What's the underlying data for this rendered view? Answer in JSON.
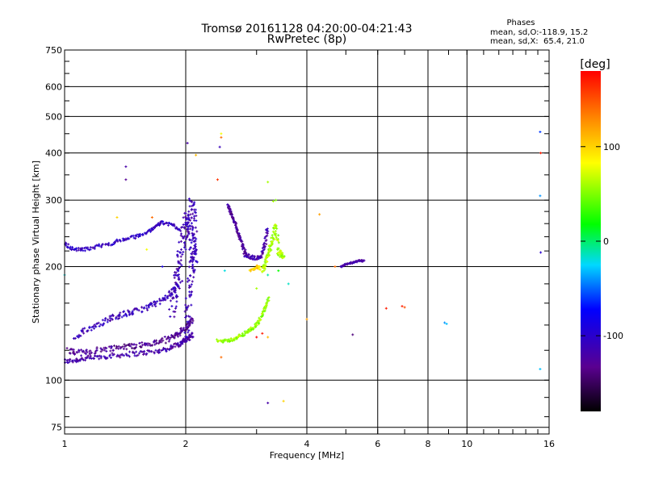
{
  "chart_data": {
    "type": "scatter",
    "title": "Tromsø 20161128 04:20:00-04:21:43",
    "subtitle": "RwPretec (8p)",
    "xlabel": "Frequency [MHz]",
    "ylabel": "Stationary phase Virtual Height [km]",
    "x_scale": "log",
    "y_scale": "log",
    "xlim": [
      1,
      16
    ],
    "ylim": [
      72,
      750
    ],
    "x_ticks": [
      1,
      2,
      4,
      6,
      8,
      10,
      16
    ],
    "y_ticks": [
      75,
      100,
      200,
      300,
      400,
      500,
      600,
      750
    ],
    "grid": true,
    "stats": {
      "heading": "Phases",
      "line1": "mean, sd,O:-118.9, 15.2",
      "line2": "mean, sd,X:  65.4, 21.0"
    },
    "colorbar": {
      "label": "[deg]",
      "range": [
        -180,
        180
      ],
      "ticks": [
        100,
        0,
        -100
      ]
    },
    "traces": [
      {
        "x": [
          1.0,
          1.06,
          1.12,
          1.2,
          1.3,
          1.42,
          1.55,
          1.68,
          1.8,
          1.9,
          1.96,
          2.0,
          2.04,
          2.08
        ],
        "y": [
          112,
          113,
          114,
          115,
          116,
          117,
          118,
          119,
          121,
          124,
          126,
          128,
          130,
          132
        ],
        "phase": -120,
        "spread": 0.03
      },
      {
        "x": [
          1.02,
          1.08,
          1.15,
          1.25,
          1.35,
          1.45,
          1.55,
          1.65,
          1.75,
          1.85,
          1.92,
          1.98,
          2.03,
          2.08
        ],
        "y": [
          120,
          118,
          119,
          121,
          122,
          123,
          124,
          125,
          127,
          130,
          133,
          136,
          140,
          145
        ],
        "phase": -130,
        "spread": 0.035
      },
      {
        "x": [
          1.06,
          1.12,
          1.2,
          1.28,
          1.35,
          1.42,
          1.5,
          1.6,
          1.7,
          1.8,
          1.88,
          1.95
        ],
        "y": [
          128,
          135,
          140,
          145,
          148,
          150,
          152,
          156,
          160,
          166,
          175,
          185
        ],
        "phase": -110,
        "spread": 0.035
      },
      {
        "x": [
          1.0,
          1.05,
          1.12,
          1.2,
          1.3,
          1.4,
          1.5,
          1.6,
          1.68,
          1.75,
          1.85,
          1.95
        ],
        "y": [
          230,
          222,
          222,
          226,
          230,
          236,
          240,
          246,
          256,
          262,
          258,
          250
        ],
        "phase": -105,
        "spread": 0.02
      },
      {
        "x": [
          1.85,
          1.88,
          1.9,
          1.92,
          1.95,
          1.98,
          2.0,
          2.02,
          2.05,
          2.08,
          2.1
        ],
        "y": [
          150,
          165,
          185,
          200,
          220,
          240,
          260,
          275,
          250,
          220,
          200
        ],
        "phase": -115,
        "spread": 0.07
      },
      {
        "x": [
          2.0,
          2.02,
          2.04,
          2.06,
          2.08,
          2.1,
          2.1,
          2.08,
          2.05
        ],
        "y": [
          130,
          150,
          170,
          190,
          210,
          230,
          250,
          280,
          300
        ],
        "phase": -110,
        "spread": 0.06
      },
      {
        "x": [
          2.55,
          2.58,
          2.62,
          2.66,
          2.7,
          2.75,
          2.8,
          2.85
        ],
        "y": [
          290,
          280,
          270,
          258,
          245,
          232,
          220,
          212
        ],
        "phase": -125,
        "spread": 0.02
      },
      {
        "x": [
          2.8,
          2.9,
          3.0,
          3.1,
          3.15,
          3.2
        ],
        "y": [
          215,
          212,
          210,
          215,
          230,
          255
        ],
        "phase": -120,
        "spread": 0.025
      },
      {
        "x": [
          2.4,
          2.5,
          2.6,
          2.7,
          2.8,
          2.9,
          3.0,
          3.08,
          3.15,
          3.22
        ],
        "y": [
          127,
          127,
          128,
          130,
          133,
          136,
          140,
          147,
          155,
          165
        ],
        "phase": 55,
        "spread": 0.02
      },
      {
        "x": [
          3.1,
          3.15,
          3.2,
          3.25,
          3.3,
          3.35,
          3.4,
          3.45,
          3.5
        ],
        "y": [
          195,
          205,
          215,
          225,
          240,
          260,
          220,
          215,
          210
        ],
        "phase": 60,
        "spread": 0.03
      },
      {
        "x": [
          2.9,
          3.0,
          3.05
        ],
        "y": [
          195,
          200,
          198
        ],
        "phase": 100,
        "spread": 0.02
      },
      {
        "x": [
          4.85,
          5.0,
          5.2,
          5.4,
          5.55
        ],
        "y": [
          200,
          203,
          205,
          207,
          207
        ],
        "phase": -120,
        "spread": 0.01
      }
    ],
    "points": [
      {
        "x": 1.42,
        "y": 368,
        "phase": -120
      },
      {
        "x": 1.42,
        "y": 340,
        "phase": -130
      },
      {
        "x": 2.02,
        "y": 425,
        "phase": -120
      },
      {
        "x": 2.12,
        "y": 395,
        "phase": 110
      },
      {
        "x": 2.45,
        "y": 450,
        "phase": 80
      },
      {
        "x": 2.45,
        "y": 440,
        "phase": 140
      },
      {
        "x": 2.43,
        "y": 415,
        "phase": -110
      },
      {
        "x": 2.4,
        "y": 340,
        "phase": 160
      },
      {
        "x": 3.2,
        "y": 335,
        "phase": 60
      },
      {
        "x": 3.35,
        "y": 300,
        "phase": 50
      },
      {
        "x": 3.3,
        "y": 298,
        "phase": 60
      },
      {
        "x": 4.3,
        "y": 275,
        "phase": 120
      },
      {
        "x": 2.5,
        "y": 195,
        "phase": -20
      },
      {
        "x": 3.2,
        "y": 190,
        "phase": -10
      },
      {
        "x": 3.4,
        "y": 195,
        "phase": 20
      },
      {
        "x": 3.6,
        "y": 180,
        "phase": -15
      },
      {
        "x": 3.0,
        "y": 175,
        "phase": 60
      },
      {
        "x": 4.0,
        "y": 145,
        "phase": 120
      },
      {
        "x": 4.7,
        "y": 200,
        "phase": 140
      },
      {
        "x": 5.2,
        "y": 132,
        "phase": -140
      },
      {
        "x": 6.3,
        "y": 155,
        "phase": 170
      },
      {
        "x": 6.9,
        "y": 157,
        "phase": 170
      },
      {
        "x": 7.0,
        "y": 156,
        "phase": 150
      },
      {
        "x": 8.8,
        "y": 142,
        "phase": -40
      },
      {
        "x": 8.9,
        "y": 141,
        "phase": -30
      },
      {
        "x": 3.0,
        "y": 130,
        "phase": 180
      },
      {
        "x": 3.1,
        "y": 133,
        "phase": 170
      },
      {
        "x": 3.2,
        "y": 130,
        "phase": 110
      },
      {
        "x": 2.45,
        "y": 115,
        "phase": 140
      },
      {
        "x": 1.0,
        "y": 190,
        "phase": -20
      },
      {
        "x": 1.35,
        "y": 270,
        "phase": 100
      },
      {
        "x": 1.65,
        "y": 270,
        "phase": 140
      },
      {
        "x": 1.6,
        "y": 222,
        "phase": 80
      },
      {
        "x": 1.75,
        "y": 200,
        "phase": -90
      },
      {
        "x": 3.2,
        "y": 87,
        "phase": -120
      },
      {
        "x": 3.5,
        "y": 88,
        "phase": 100
      },
      {
        "x": 15.2,
        "y": 455,
        "phase": -60
      },
      {
        "x": 15.25,
        "y": 400,
        "phase": 170
      },
      {
        "x": 15.2,
        "y": 308,
        "phase": -40
      },
      {
        "x": 15.25,
        "y": 218,
        "phase": -100
      },
      {
        "x": 15.2,
        "y": 107,
        "phase": -30
      }
    ]
  }
}
